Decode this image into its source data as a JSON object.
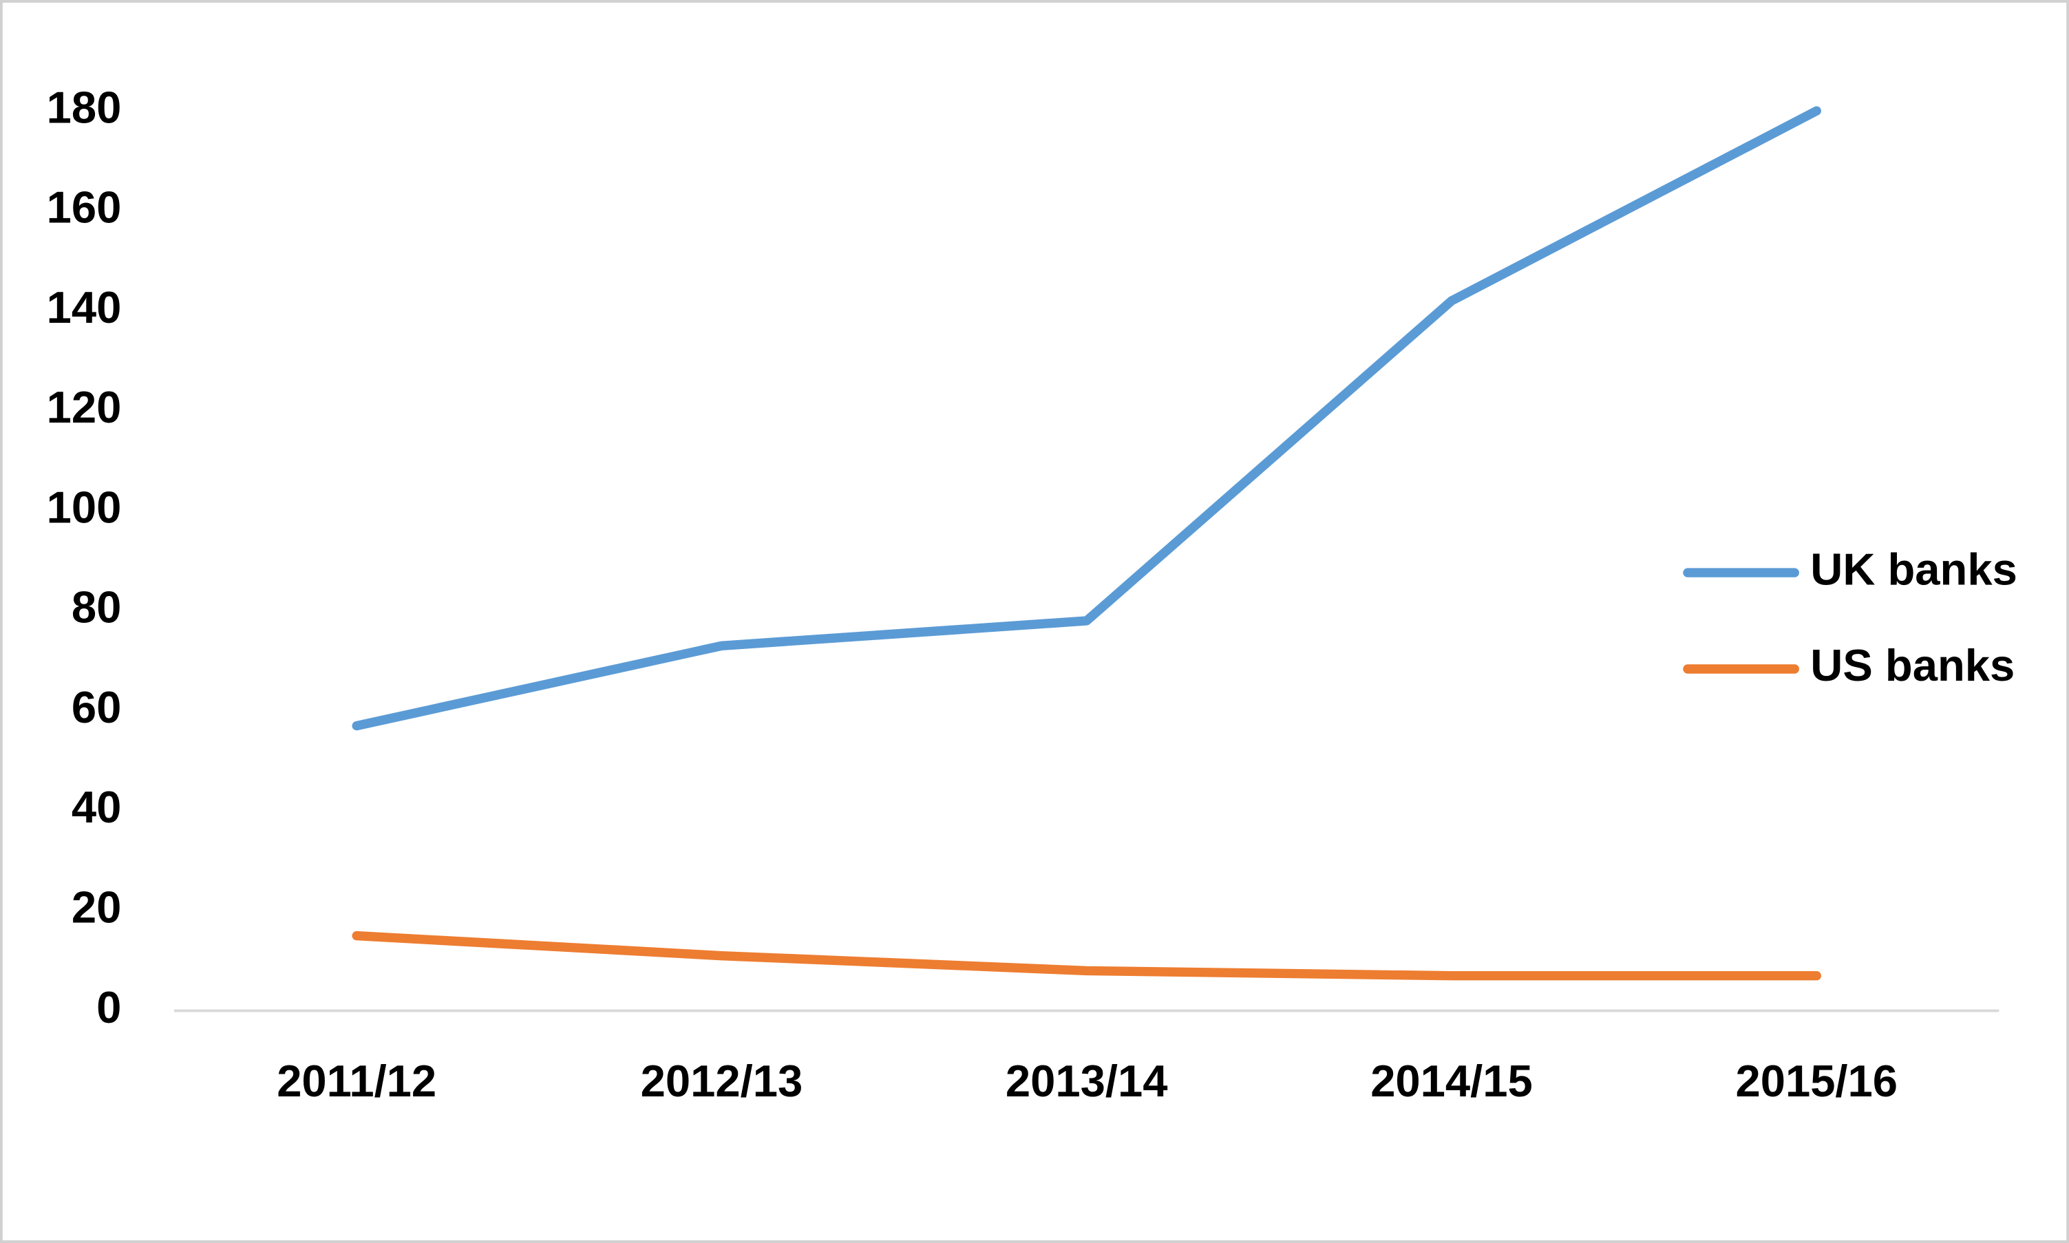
{
  "chart_data": {
    "type": "line",
    "categories": [
      "2011/12",
      "2012/13",
      "2013/14",
      "2014/15",
      "2015/16"
    ],
    "series": [
      {
        "name": "UK banks",
        "color": "#5b9bd5",
        "values": [
          57,
          73,
          78,
          142,
          180
        ]
      },
      {
        "name": "US banks",
        "color": "#ed7d31",
        "values": [
          15,
          11,
          8,
          7,
          7
        ]
      }
    ],
    "ylim": [
      0,
      180
    ],
    "yticks": [
      0,
      20,
      40,
      60,
      80,
      100,
      120,
      140,
      160,
      180
    ],
    "grid": false,
    "legend": "right"
  }
}
